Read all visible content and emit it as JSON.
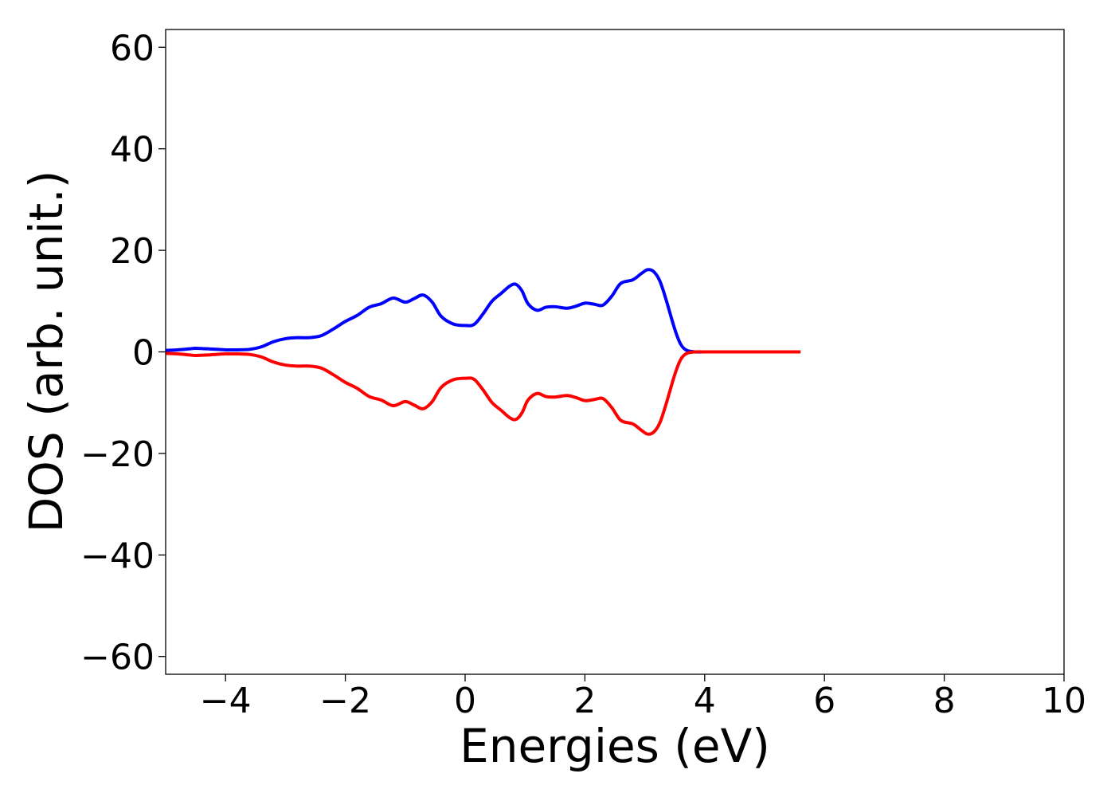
{
  "chart_data": {
    "type": "line",
    "title": "",
    "xlabel": "Energies (eV)",
    "ylabel": "DOS (arb. unit.)",
    "xlim": [
      -5,
      10
    ],
    "ylim": [
      -63.5,
      63.5
    ],
    "xticks": [
      -4,
      -2,
      0,
      2,
      4,
      6,
      8,
      10
    ],
    "xtick_labels": [
      "−4",
      "−2",
      "0",
      "2",
      "4",
      "6",
      "8",
      "10"
    ],
    "yticks": [
      60,
      40,
      20,
      0,
      -20,
      -40,
      -60
    ],
    "ytick_labels": [
      "60",
      "40",
      "20",
      "0",
      "−20",
      "−40",
      "−60"
    ],
    "grid": false,
    "legend": "none",
    "series": [
      {
        "color": "#0000ff",
        "x": [
          -5.0,
          -4.8,
          -4.6,
          -4.5,
          -4.3,
          -4.0,
          -3.8,
          -3.6,
          -3.4,
          -3.2,
          -3.0,
          -2.8,
          -2.6,
          -2.4,
          -2.2,
          -2.0,
          -1.8,
          -1.6,
          -1.4,
          -1.2,
          -1.0,
          -0.85,
          -0.7,
          -0.55,
          -0.4,
          -0.2,
          0.0,
          0.15,
          0.3,
          0.45,
          0.6,
          0.75,
          0.85,
          0.95,
          1.05,
          1.2,
          1.35,
          1.5,
          1.7,
          1.85,
          2.0,
          2.15,
          2.3,
          2.45,
          2.6,
          2.8,
          2.95,
          3.05,
          3.15,
          3.25,
          3.35,
          3.5,
          3.6,
          3.7,
          3.85,
          4.0,
          4.5,
          5.0,
          5.6
        ],
        "y": [
          0.3,
          0.4,
          0.6,
          0.7,
          0.6,
          0.4,
          0.4,
          0.5,
          1.0,
          2.0,
          2.6,
          2.8,
          2.8,
          3.2,
          4.5,
          6.0,
          7.2,
          8.8,
          9.5,
          10.6,
          9.8,
          10.5,
          11.2,
          9.8,
          7.0,
          5.5,
          5.2,
          5.4,
          7.5,
          10.0,
          11.5,
          13.0,
          13.3,
          12.0,
          9.5,
          8.2,
          8.8,
          8.9,
          8.6,
          9.0,
          9.6,
          9.4,
          9.2,
          11.0,
          13.5,
          14.2,
          15.5,
          16.2,
          15.8,
          14.0,
          10.5,
          4.5,
          1.5,
          0.3,
          0.0,
          0.0,
          0.0,
          0.0,
          0.0
        ]
      },
      {
        "color": "#ff0000",
        "x": [
          -5.0,
          -4.8,
          -4.6,
          -4.5,
          -4.3,
          -4.0,
          -3.8,
          -3.6,
          -3.4,
          -3.2,
          -3.0,
          -2.8,
          -2.6,
          -2.4,
          -2.2,
          -2.0,
          -1.8,
          -1.6,
          -1.4,
          -1.2,
          -1.0,
          -0.85,
          -0.7,
          -0.55,
          -0.4,
          -0.2,
          0.0,
          0.15,
          0.3,
          0.45,
          0.6,
          0.75,
          0.85,
          0.95,
          1.05,
          1.2,
          1.35,
          1.5,
          1.7,
          1.85,
          2.0,
          2.15,
          2.3,
          2.45,
          2.6,
          2.8,
          2.95,
          3.05,
          3.15,
          3.25,
          3.35,
          3.5,
          3.6,
          3.7,
          3.85,
          4.0,
          4.5,
          5.0,
          5.6
        ],
        "y": [
          -0.3,
          -0.4,
          -0.6,
          -0.7,
          -0.6,
          -0.4,
          -0.4,
          -0.5,
          -1.0,
          -2.0,
          -2.6,
          -2.8,
          -2.8,
          -3.2,
          -4.5,
          -6.0,
          -7.2,
          -8.8,
          -9.5,
          -10.6,
          -9.8,
          -10.5,
          -11.2,
          -9.8,
          -7.0,
          -5.5,
          -5.2,
          -5.4,
          -7.5,
          -10.0,
          -11.5,
          -13.0,
          -13.3,
          -12.0,
          -9.5,
          -8.2,
          -8.8,
          -8.9,
          -8.6,
          -9.0,
          -9.6,
          -9.4,
          -9.2,
          -11.0,
          -13.5,
          -14.2,
          -15.5,
          -16.2,
          -15.8,
          -14.0,
          -10.5,
          -4.5,
          -1.5,
          -0.3,
          0.0,
          0.0,
          0.0,
          0.0,
          0.0
        ]
      }
    ]
  }
}
